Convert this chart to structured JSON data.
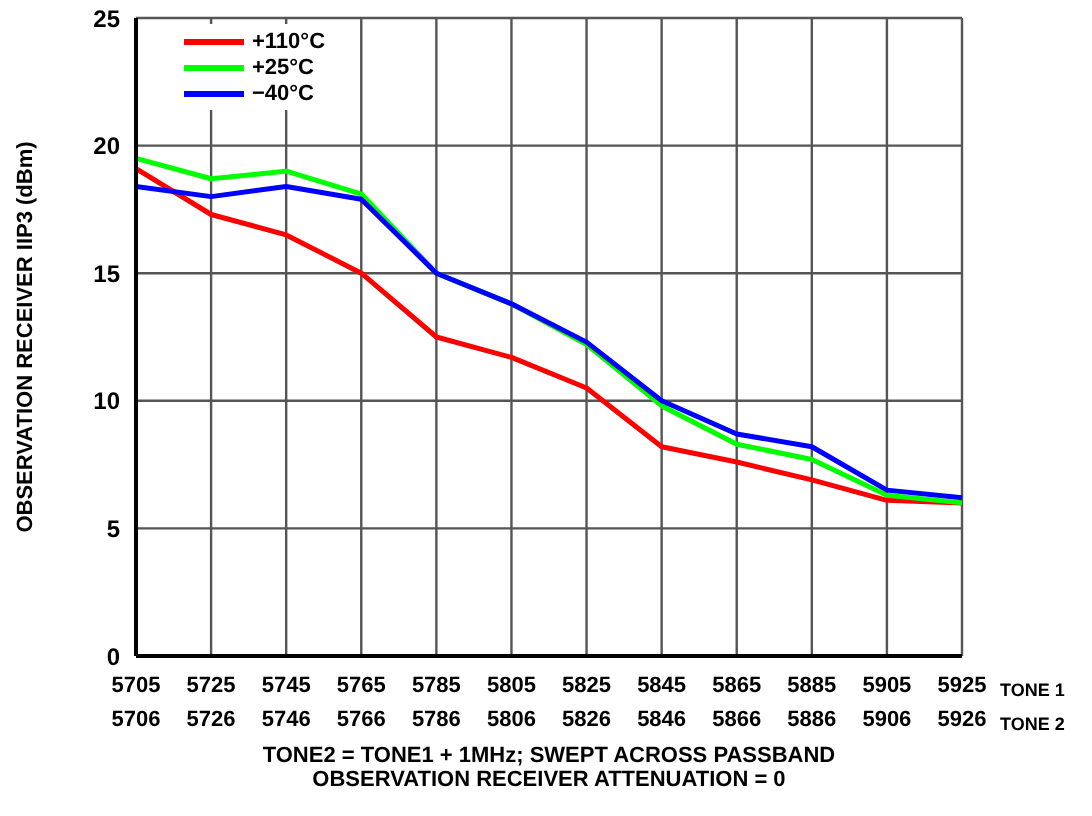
{
  "chart_data": {
    "type": "line",
    "categories": [
      "5705\n5706",
      "5725\n5726",
      "5745\n5746",
      "5765\n5766",
      "5785\n5786",
      "5805\n5806",
      "5825\n5826",
      "5845\n5846",
      "5865\n5866",
      "5885\n5886",
      "5905\n5906",
      "5925\n5926"
    ],
    "series": [
      {
        "name": "+110°C",
        "color": "#ff0000",
        "values": [
          19.1,
          17.3,
          16.5,
          15.0,
          12.5,
          11.7,
          10.5,
          8.2,
          7.6,
          6.9,
          6.1,
          6.0
        ]
      },
      {
        "name": "+25°C",
        "color": "#00ff00",
        "values": [
          19.5,
          18.7,
          19.0,
          18.1,
          15.0,
          13.8,
          12.2,
          9.8,
          8.3,
          7.7,
          6.3,
          6.0
        ]
      },
      {
        "name": "−40°C",
        "color": "#0000ff",
        "values": [
          18.4,
          18.0,
          18.4,
          17.9,
          15.0,
          13.8,
          12.3,
          10.0,
          8.7,
          8.2,
          6.5,
          6.2
        ]
      }
    ],
    "ylabel": "OBSERVATION RECEIVER IIP3 (dBm)",
    "xlabel": "TONE2 = TONE1 + 1MHz; SWEPT ACROSS PASSBAND\nOBSERVATION RECEIVER ATTENUATION = 0",
    "annotations": [
      "TONE 1",
      "TONE 2"
    ],
    "ylim": [
      0,
      25
    ],
    "yticks": [
      0,
      5,
      10,
      15,
      20,
      25
    ],
    "grid": true,
    "legend": "top left",
    "marker": "none",
    "line_style": "solid"
  }
}
